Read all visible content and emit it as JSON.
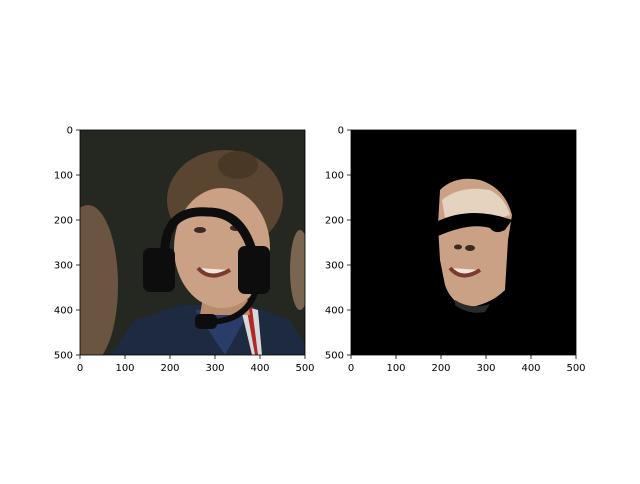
{
  "figure": {
    "panels": [
      {
        "id": "left",
        "content": "portrait-with-headset-overlay",
        "x_ticks": [
          "0",
          "100",
          "200",
          "300",
          "400",
          "500"
        ],
        "y_ticks": [
          "0",
          "100",
          "200",
          "300",
          "400",
          "500"
        ]
      },
      {
        "id": "right",
        "content": "segmented-face-on-black",
        "x_ticks": [
          "0",
          "100",
          "200",
          "300",
          "400",
          "500"
        ],
        "y_ticks": [
          "0",
          "100",
          "200",
          "300",
          "400",
          "500"
        ]
      }
    ],
    "colors": {
      "photo_bg": "#252821",
      "skin": "#caa184",
      "hair": "#5a4530",
      "headset": "#0d0d0d",
      "mask_bg": "#000000"
    }
  }
}
